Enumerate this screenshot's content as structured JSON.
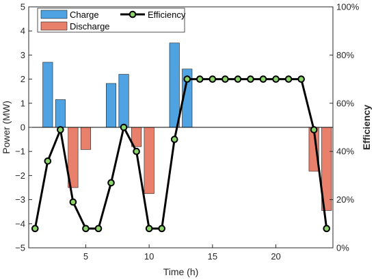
{
  "chart_data": {
    "type": "bar+line",
    "x": [
      1,
      2,
      3,
      4,
      5,
      6,
      7,
      8,
      9,
      10,
      11,
      12,
      13,
      14,
      15,
      16,
      17,
      18,
      19,
      20,
      21,
      22,
      23,
      24
    ],
    "xlabel": "Time (h)",
    "xlim": [
      0.5,
      24.5
    ],
    "xticks": [
      5,
      10,
      15,
      20
    ],
    "ylabel_left": "Power (MW)",
    "ylim_left": [
      -5,
      5
    ],
    "yticks_left": [
      -5,
      -4,
      -3,
      -2,
      -1,
      0,
      1,
      2,
      3,
      4,
      5
    ],
    "ylabel_right": "Efficiency",
    "ylim_right": [
      0,
      100
    ],
    "yticks_right": [
      "0%",
      "20%",
      "40%",
      "60%",
      "80%",
      "100%"
    ],
    "series": [
      {
        "name": "Charge",
        "kind": "bar",
        "color": "#4FA3E3",
        "values": [
          0,
          2.7,
          1.15,
          0,
          0,
          0,
          1.82,
          2.2,
          0,
          0,
          0,
          3.5,
          2.42,
          0,
          0,
          0,
          0,
          0,
          0,
          0,
          0,
          0,
          0,
          0
        ]
      },
      {
        "name": "Discharge",
        "kind": "bar",
        "color": "#E8806C",
        "values": [
          0,
          0,
          0,
          -2.5,
          -0.92,
          0,
          0,
          0,
          -0.8,
          -2.75,
          0,
          0,
          0,
          0,
          0,
          0,
          0,
          0,
          0,
          0,
          0,
          0,
          -1.82,
          -3.45
        ]
      },
      {
        "name": "Efficiency",
        "kind": "line",
        "axis": "right",
        "color": "#000000",
        "marker_color": "#8BD46A",
        "values": [
          8,
          36,
          49,
          19,
          8,
          8,
          27,
          50,
          40,
          8,
          8,
          45,
          70,
          70,
          70,
          70,
          70,
          70,
          70,
          70,
          70,
          70,
          49,
          8
        ]
      }
    ],
    "legend": {
      "placement": "top-left",
      "entries": [
        "Charge",
        "Discharge",
        "Efficiency"
      ]
    },
    "grid": false
  }
}
